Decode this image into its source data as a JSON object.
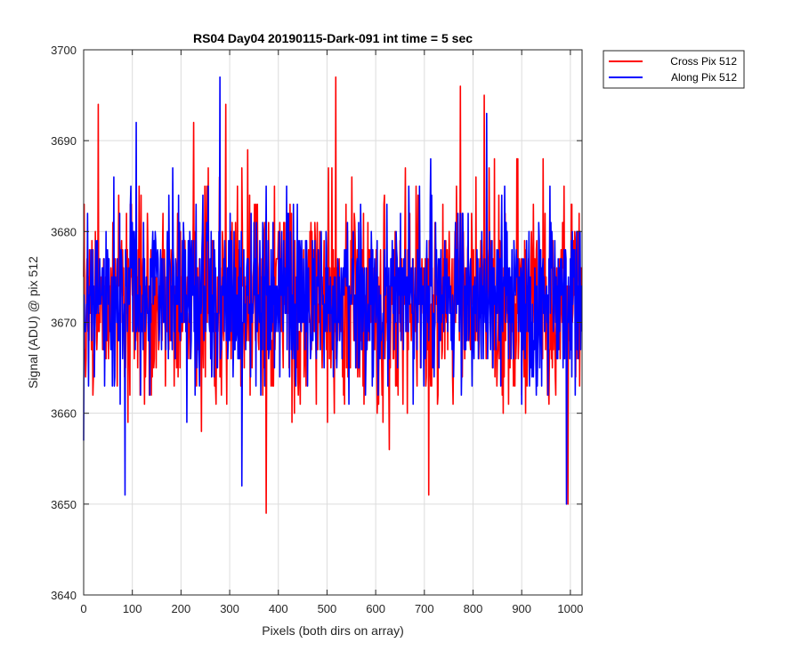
{
  "chart_data": {
    "type": "line",
    "title": "RS04 Day04 20190115-Dark-091 int time = 5 sec",
    "xlabel": "Pixels (both dirs on array)",
    "ylabel": "Signal (ADU) @ pix 512",
    "xlim": [
      0,
      1024
    ],
    "ylim": [
      3640,
      3700
    ],
    "xticks": [
      0,
      100,
      200,
      300,
      400,
      500,
      600,
      700,
      800,
      900,
      1000
    ],
    "xtick_labels": [
      "0",
      "100",
      "200",
      "300",
      "400",
      "500",
      "600",
      "700",
      "800",
      "900",
      "1000"
    ],
    "yticks": [
      3640,
      3650,
      3660,
      3670,
      3680,
      3690,
      3700
    ],
    "ytick_labels": [
      "3640",
      "3650",
      "3660",
      "3670",
      "3680",
      "3690",
      "3700"
    ],
    "grid": true,
    "legend_position": "outside top-right",
    "series": [
      {
        "name": "Cross Pix 512",
        "color": "#ff0000",
        "n_points": 1024,
        "mean": 3672.5,
        "std": 5.5,
        "min": 3649,
        "max": 3697,
        "extremes": [
          {
            "x": 30,
            "y": 3694
          },
          {
            "x": 226,
            "y": 3692
          },
          {
            "x": 292,
            "y": 3694
          },
          {
            "x": 375,
            "y": 3649
          },
          {
            "x": 518,
            "y": 3697
          },
          {
            "x": 709,
            "y": 3651
          },
          {
            "x": 774,
            "y": 3696
          },
          {
            "x": 823,
            "y": 3695
          },
          {
            "x": 995,
            "y": 3650
          }
        ]
      },
      {
        "name": "Along Pix 512",
        "color": "#0000ff",
        "n_points": 1024,
        "mean": 3673,
        "std": 5.0,
        "min": 3650,
        "max": 3697,
        "extremes": [
          {
            "x": 0,
            "y": 3657
          },
          {
            "x": 85,
            "y": 3651
          },
          {
            "x": 108,
            "y": 3692
          },
          {
            "x": 280,
            "y": 3697
          },
          {
            "x": 325,
            "y": 3652
          },
          {
            "x": 828,
            "y": 3693
          },
          {
            "x": 992,
            "y": 3650
          }
        ]
      }
    ]
  }
}
